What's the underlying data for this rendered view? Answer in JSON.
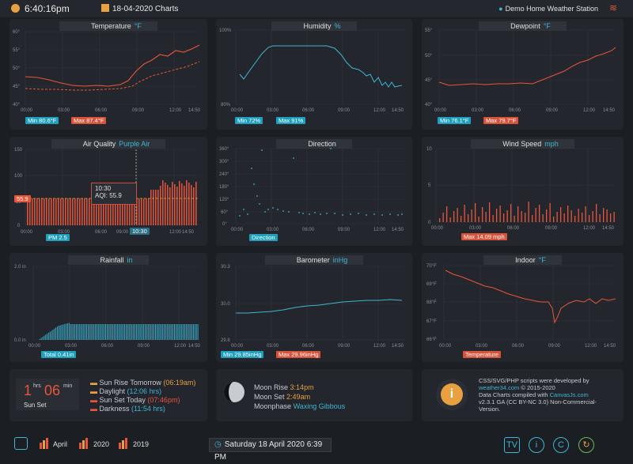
{
  "header": {
    "time": "6:40:16pm",
    "charts_label": "18-04-2020 Charts",
    "station": "Demo Home Weather Station"
  },
  "panels": {
    "temperature": {
      "title": "Temperature",
      "unit": "°F",
      "min": "Min 80.6°F",
      "max": "Max 87.4°F",
      "yticks": [
        "60°",
        "55°",
        "50°",
        "45°",
        "40°"
      ]
    },
    "humidity": {
      "title": "Humidity",
      "unit": "%",
      "min": "Min 72%",
      "max": "Max 91%",
      "yticks": [
        "100%",
        "80%"
      ]
    },
    "dewpoint": {
      "title": "Dewpoint",
      "unit": "°F",
      "min": "Min 76.1°F",
      "max": "Max 79.7°F",
      "yticks": [
        "55°",
        "50°",
        "45°",
        "40°"
      ]
    },
    "airquality": {
      "title": "Air Quality",
      "unit": "Purple Air",
      "badge": "PM 2.5",
      "tooltip_time": "10:30",
      "tooltip_value": "AQI:  55.9",
      "ref_label": "55.9",
      "cursor_label": "10:30",
      "yticks": [
        "150",
        "100",
        "50",
        "0"
      ]
    },
    "direction": {
      "title": "Direction",
      "badge": "Direction",
      "yticks": [
        "360°",
        "300°",
        "240°",
        "180°",
        "120°",
        "60°",
        "0°"
      ]
    },
    "windspeed": {
      "title": "Wind Speed",
      "unit": "mph",
      "max": "Max 14.09 mph",
      "yticks": [
        "10",
        "5",
        "0"
      ]
    },
    "rainfall": {
      "title": "Rainfall",
      "unit": "in",
      "total": "Total 0.41in",
      "yticks": [
        "2.0 in",
        "0.0 in"
      ]
    },
    "barometer": {
      "title": "Barometer",
      "unit": "inHg",
      "min": "Min 29.85inHg",
      "max": "Max 29.96inHg",
      "yticks": [
        "30.3",
        "30.0",
        "29.8"
      ]
    },
    "indoor": {
      "title": "Indoor",
      "unit": "°F",
      "badge": "Temperature",
      "yticks": [
        "70°F",
        "69°F",
        "68°F",
        "67°F",
        "66°F"
      ]
    }
  },
  "xticks": [
    "00:00",
    "03:00",
    "06:00",
    "09:00",
    "12:00",
    "14:50"
  ],
  "sun": {
    "hrs": "1",
    "hrs_unit": "hrs",
    "min": "06",
    "min_unit": "min",
    "label": "Sun Set",
    "rise_tomorrow_label": "Sun Rise Tomorrow",
    "rise_tomorrow": "(06:19am)",
    "daylight_label": "Daylight",
    "daylight": "(12:06 hrs)",
    "set_today_label": "Sun Set Today",
    "set_today": "(07:46pm)",
    "darkness_label": "Darkness",
    "darkness": "(11:54 hrs)"
  },
  "moon": {
    "rise_label": "Moon Rise",
    "rise": "3:14pm",
    "set_label": "Moon Set",
    "set": "2:49am",
    "phase_label": "Moonphase",
    "phase": "Waxing Gibbous"
  },
  "info": {
    "line1": "CSS/SVG/PHP scripts were developed by",
    "line2a": "weather34.com",
    "line2b": " © 2015-2020",
    "line3a": "Data Charts compiled with ",
    "line3b": "CanvasJs.com",
    "line4": "v2.3.1 GA (CC BY-NC 3.0) Non-Commercial-",
    "line5": "Version."
  },
  "footer": {
    "april": "April",
    "y2020": "2020",
    "y2019": "2019",
    "date": "Saturday 18 April 2020 6:39 PM",
    "tv": "TV",
    "info_btn": "i",
    "copy_btn": "C"
  },
  "colors": {
    "accent_teal": "#3fb6d4",
    "accent_red": "#e8553a",
    "accent_orange": "#e8a040"
  }
}
